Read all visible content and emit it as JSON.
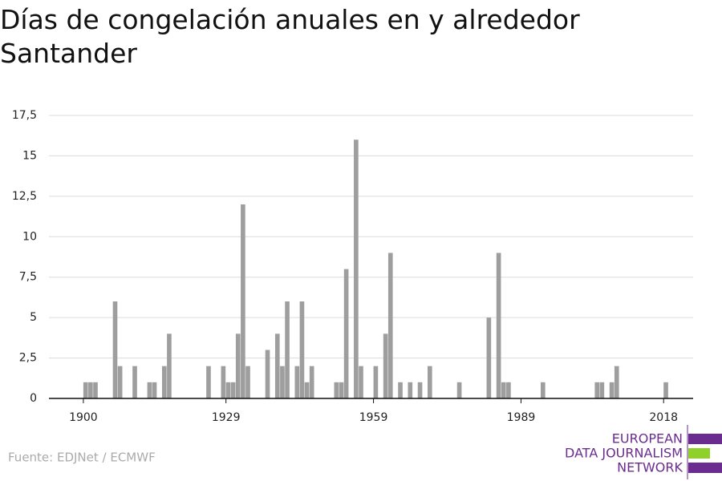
{
  "chart_data": {
    "type": "bar",
    "title": "Días de congelación anuales en y alrededor Santander",
    "source": "Fuente: EDJNet / ECMWF",
    "logo": [
      "EUROPEAN",
      "DATA JOURNALISM",
      "NETWORK"
    ],
    "color": "#9e9e9e",
    "x": [
      1900,
      1901,
      1902,
      1906,
      1907,
      1910,
      1913,
      1914,
      1916,
      1917,
      1925,
      1928,
      1929,
      1930,
      1931,
      1932,
      1933,
      1937,
      1939,
      1940,
      1941,
      1943,
      1944,
      1945,
      1946,
      1951,
      1952,
      1953,
      1955,
      1956,
      1959,
      1961,
      1962,
      1964,
      1966,
      1968,
      1970,
      1976,
      1982,
      1984,
      1985,
      1986,
      1993,
      2004,
      2005,
      2007,
      2008,
      2018
    ],
    "values": [
      1,
      1,
      1,
      6,
      2,
      2,
      1,
      1,
      2,
      4,
      2,
      2,
      1,
      1,
      4,
      12,
      2,
      3,
      4,
      2,
      6,
      2,
      6,
      1,
      2,
      1,
      1,
      8,
      16,
      2,
      2,
      4,
      9,
      1,
      1,
      1,
      2,
      1,
      5,
      9,
      1,
      1,
      1,
      1,
      1,
      1,
      2,
      1
    ],
    "xlim": [
      1893,
      2024
    ],
    "xticks": [
      1900,
      1929,
      1959,
      1989,
      2018
    ],
    "ylim": [
      0,
      17.5
    ],
    "yticks": [
      0,
      {
        "value": 2.5,
        "label": "2,5"
      },
      5,
      {
        "value": 7.5,
        "label": "7,5"
      },
      10,
      {
        "value": 12.5,
        "label": "12,5"
      },
      15,
      {
        "value": 17.5,
        "label": "17,5"
      }
    ],
    "grid": true
  }
}
